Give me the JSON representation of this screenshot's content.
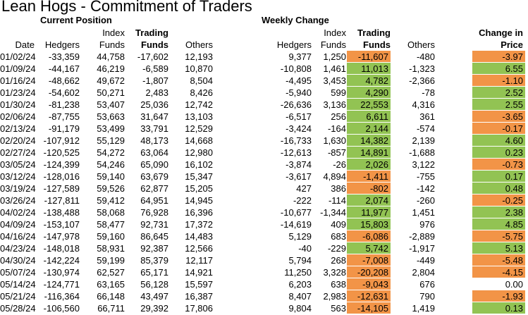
{
  "title": "Lean Hogs - Commitment of Traders",
  "sections": {
    "current": "Current Position",
    "weekly": "Weekly Change"
  },
  "headers": {
    "date": "Date",
    "hedgers": "Hedgers",
    "index_funds": [
      "Index",
      "Funds"
    ],
    "trading_funds": [
      "Trading",
      "Funds"
    ],
    "others": "Others",
    "w_hedgers": "Hedgers",
    "w_index_funds": [
      "Index",
      "Funds"
    ],
    "w_trading_funds": [
      "Trading",
      "Funds"
    ],
    "w_others": "Others",
    "price_change": [
      "Change in",
      "Price"
    ]
  },
  "colors": {
    "positive": "#92c353",
    "negative": "#f29447"
  },
  "rows": [
    [
      "01/02/24",
      "-33,359",
      "44,758",
      "-17,602",
      "12,193",
      "9,377",
      "1,250",
      "-11,607",
      "-480",
      "-3.97"
    ],
    [
      "01/09/24",
      "-44,167",
      "46,219",
      "-6,589",
      "10,870",
      "-10,808",
      "1,461",
      "11,013",
      "-1,323",
      "6.55"
    ],
    [
      "01/16/24",
      "-48,662",
      "49,672",
      "-1,807",
      "8,504",
      "-4,495",
      "3,453",
      "4,782",
      "-2,366",
      "-1.10"
    ],
    [
      "01/23/24",
      "-54,602",
      "50,271",
      "2,483",
      "8,426",
      "-5,940",
      "599",
      "4,290",
      "-78",
      "2.52"
    ],
    [
      "01/30/24",
      "-81,238",
      "53,407",
      "25,036",
      "12,742",
      "-26,636",
      "3,136",
      "22,553",
      "4,316",
      "2.55"
    ],
    [
      "02/06/24",
      "-87,755",
      "53,663",
      "31,647",
      "13,103",
      "-6,517",
      "256",
      "6,611",
      "361",
      "-3.65"
    ],
    [
      "02/13/24",
      "-91,179",
      "53,499",
      "33,791",
      "12,529",
      "-3,424",
      "-164",
      "2,144",
      "-574",
      "-0.17"
    ],
    [
      "02/20/24",
      "-107,912",
      "55,129",
      "48,173",
      "14,668",
      "-16,733",
      "1,630",
      "14,382",
      "2,139",
      "4.60"
    ],
    [
      "02/27/24",
      "-120,525",
      "54,272",
      "63,064",
      "12,980",
      "-12,613",
      "-857",
      "14,891",
      "-1,688",
      "0.23"
    ],
    [
      "03/05/24",
      "-124,399",
      "54,246",
      "65,090",
      "16,102",
      "-3,874",
      "-26",
      "2,026",
      "3,122",
      "-0.73"
    ],
    [
      "03/12/24",
      "-128,016",
      "59,140",
      "63,679",
      "15,347",
      "-3,617",
      "4,894",
      "-1,411",
      "-755",
      "0.17"
    ],
    [
      "03/19/24",
      "-127,589",
      "59,526",
      "62,877",
      "15,205",
      "427",
      "386",
      "-802",
      "-142",
      "0.48"
    ],
    [
      "03/26/24",
      "-127,811",
      "59,412",
      "64,951",
      "14,945",
      "-222",
      "-114",
      "2,074",
      "-260",
      "-0.25"
    ],
    [
      "04/02/24",
      "-138,488",
      "58,068",
      "76,928",
      "16,396",
      "-10,677",
      "-1,344",
      "11,977",
      "1,451",
      "2.38"
    ],
    [
      "04/09/24",
      "-153,107",
      "58,477",
      "92,731",
      "17,372",
      "-14,619",
      "409",
      "15,803",
      "976",
      "4.85"
    ],
    [
      "04/16/24",
      "-147,978",
      "59,160",
      "86,645",
      "14,483",
      "5,129",
      "683",
      "-6,086",
      "-2,889",
      "-5.75"
    ],
    [
      "04/23/24",
      "-148,018",
      "58,931",
      "92,387",
      "12,566",
      "-40",
      "-229",
      "5,742",
      "-1,917",
      "5.13"
    ],
    [
      "04/30/24",
      "-142,224",
      "59,199",
      "85,379",
      "12,117",
      "5,794",
      "268",
      "-7,008",
      "-449",
      "-5.48"
    ],
    [
      "05/07/24",
      "-130,974",
      "62,527",
      "65,171",
      "14,921",
      "11,250",
      "3,328",
      "-20,208",
      "2,804",
      "-4.15"
    ],
    [
      "05/14/24",
      "-124,771",
      "63,165",
      "56,128",
      "15,597",
      "6,203",
      "638",
      "-9,043",
      "676",
      "0.00"
    ],
    [
      "05/21/24",
      "-116,364",
      "66,148",
      "43,497",
      "16,387",
      "8,407",
      "2,983",
      "-12,631",
      "790",
      "-1.93"
    ],
    [
      "05/28/24",
      "-106,560",
      "66,711",
      "29,392",
      "17,806",
      "9,804",
      "563",
      "-14,105",
      "1,419",
      "0.13"
    ]
  ]
}
